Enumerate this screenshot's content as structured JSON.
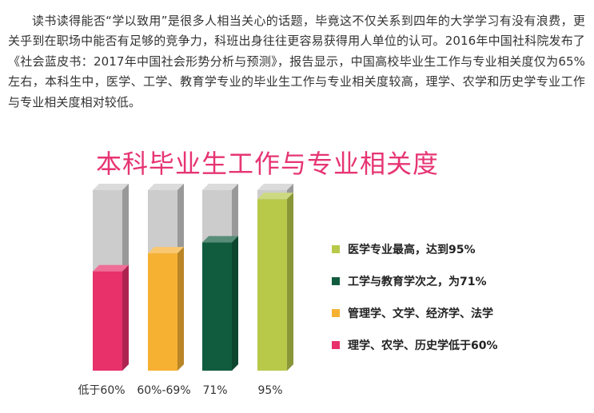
{
  "article": {
    "paragraph": "读书读得能否“学以致用”是很多人相当关心的话题，毕竟这不仅关系到四年的大学学习有没有浪费，更关乎到在职场中能否有足够的竞争力，科班出身往往更容易获得用人单位的认可。2016年中国社科院发布了《社会蓝皮书：2017年中国社会形势分析与预测》，报告显示，中国高校毕业生工作与专业相关度仅为65%左右，本科生中，医学、工学、教育学专业的毕业生工作与专业相关度较高，理学、农学和历史学专业工作与专业相关度相对较低。"
  },
  "chart_data": {
    "type": "bar",
    "title": "本科毕业生工作与专业相关度",
    "categories": [
      "低于60%",
      "60%-69%",
      "71%",
      "95%"
    ],
    "values": [
      55,
      65,
      71,
      95
    ],
    "ylim": [
      0,
      100
    ],
    "grid": false,
    "legend_position": "right",
    "colors": [
      "#e8306a",
      "#f6b133",
      "#115c3f",
      "#b8c94a"
    ],
    "background_color": "#cccccc",
    "legend": [
      {
        "label": "医学专业最高，达到95%",
        "color": "#b8c94a"
      },
      {
        "label": "工学与教育学次之，为71%",
        "color": "#115c3f"
      },
      {
        "label": "管理学、文学、经济学、法学",
        "color": "#f6b133"
      },
      {
        "label": "理学、农学、历史学低于60%",
        "color": "#e8306a"
      }
    ]
  }
}
